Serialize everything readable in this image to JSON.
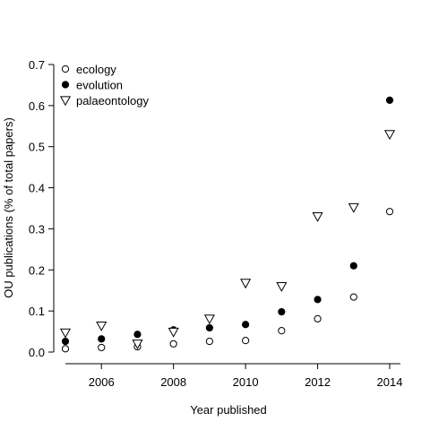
{
  "chart_data": {
    "type": "scatter",
    "title": "",
    "xlabel": "Year published",
    "ylabel": "OU publications (% of total papers)",
    "xlim": [
      2005,
      2014
    ],
    "ylim": [
      0,
      0.7
    ],
    "xticks": [
      2006,
      2008,
      2010,
      2012,
      2014
    ],
    "yticks": [
      0.0,
      0.1,
      0.2,
      0.3,
      0.4,
      0.5,
      0.6,
      0.7
    ],
    "ytick_labels": [
      "0.0",
      "0.1",
      "0.2",
      "0.3",
      "0.4",
      "0.5",
      "0.6",
      "0.7"
    ],
    "grid": false,
    "legend_position": "top-left",
    "x": [
      2005,
      2006,
      2007,
      2008,
      2009,
      2010,
      2011,
      2012,
      2013,
      2014
    ],
    "series": [
      {
        "name": "ecology",
        "marker": "open-circle",
        "values": [
          0.008,
          0.011,
          0.013,
          0.02,
          0.026,
          0.028,
          0.052,
          0.081,
          0.134,
          0.342
        ]
      },
      {
        "name": "evolution",
        "marker": "filled-circle",
        "values": [
          0.026,
          0.032,
          0.043,
          0.054,
          0.059,
          0.067,
          0.098,
          0.128,
          0.21,
          0.613
        ]
      },
      {
        "name": "palaeontology",
        "marker": "open-triangle-down",
        "values": [
          0.047,
          0.064,
          0.02,
          0.049,
          0.081,
          0.168,
          0.16,
          0.33,
          0.352,
          0.53
        ]
      }
    ]
  }
}
